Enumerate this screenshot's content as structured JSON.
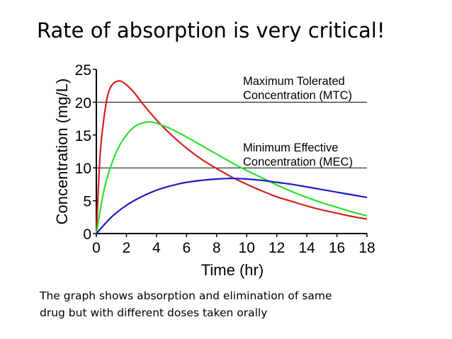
{
  "slide": {
    "title": "Rate of absorption is very critical!",
    "caption_lines": [
      "The graph shows absorption and elimination of same",
      "drug but with different doses taken orally"
    ]
  },
  "chart_data": {
    "type": "line",
    "xlabel": "Time (hr)",
    "ylabel": "Concentration (mg/L)",
    "xlim": [
      0,
      18
    ],
    "ylim": [
      0,
      25
    ],
    "xticks": [
      0,
      2,
      4,
      6,
      8,
      10,
      12,
      14,
      16,
      18
    ],
    "yticks": [
      0,
      5,
      10,
      15,
      20,
      25
    ],
    "reference_lines": [
      {
        "y": 20,
        "label_lines": [
          "Maximum Tolerated",
          "Concentration (MTC)"
        ]
      },
      {
        "y": 10,
        "label_lines": [
          "Minimum Effective",
          "Concentration (MEC)"
        ]
      }
    ],
    "series": [
      {
        "color": "#d62020",
        "x": [
          0,
          0.25,
          0.5,
          0.75,
          1,
          1.4,
          1.8,
          2.5,
          3,
          4,
          5,
          6,
          7,
          8,
          9,
          10,
          11,
          12,
          13,
          14,
          15,
          16,
          17,
          18
        ],
        "values": [
          0,
          12,
          17.5,
          21,
          22.5,
          23.2,
          23,
          21.5,
          20,
          17.3,
          15,
          13,
          11.3,
          9.9,
          8.6,
          7.5,
          6.5,
          5.6,
          4.9,
          4.2,
          3.6,
          3.1,
          2.6,
          2.2
        ]
      },
      {
        "color": "#2de02d",
        "x": [
          0,
          0.5,
          1,
          1.5,
          2,
          2.5,
          3,
          3.5,
          4,
          5,
          6,
          7,
          8,
          9,
          10,
          11,
          12,
          13,
          14,
          15,
          16,
          17,
          18
        ],
        "values": [
          0,
          6.5,
          10.5,
          13.2,
          15,
          16.2,
          16.8,
          17,
          16.8,
          15.9,
          14.7,
          13.4,
          12.1,
          10.8,
          9.6,
          8.5,
          7.4,
          6.4,
          5.5,
          4.7,
          4,
          3.3,
          2.7
        ]
      },
      {
        "color": "#1c1cc0",
        "x": [
          0,
          1,
          2,
          3,
          4,
          5,
          6,
          7,
          8,
          9,
          10,
          11,
          12,
          13,
          14,
          15,
          16,
          17,
          18
        ],
        "values": [
          0,
          2.5,
          4.3,
          5.6,
          6.6,
          7.3,
          7.8,
          8.1,
          8.3,
          8.4,
          8.3,
          8.1,
          7.8,
          7.5,
          7.1,
          6.7,
          6.3,
          5.9,
          5.5
        ]
      }
    ]
  }
}
